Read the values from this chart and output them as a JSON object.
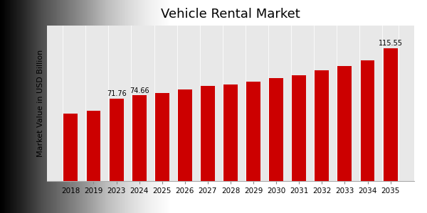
{
  "title": "Vehicle Rental Market",
  "ylabel": "Market Value in USD Billion",
  "categories": [
    "2018",
    "2019",
    "2023",
    "2024",
    "2025",
    "2026",
    "2027",
    "2028",
    "2029",
    "2030",
    "2031",
    "2032",
    "2033",
    "2034",
    "2035"
  ],
  "values": [
    58.5,
    61.0,
    71.76,
    74.66,
    76.5,
    79.5,
    82.5,
    84.0,
    86.5,
    89.5,
    92.0,
    96.0,
    100.0,
    105.0,
    115.55
  ],
  "labeled_indices": [
    2,
    3,
    14
  ],
  "labeled_values": [
    "71.76",
    "74.66",
    "115.55"
  ],
  "bar_color": "#cc0000",
  "bg_color_left": "#d8d8d8",
  "bg_color_right": "#f5f5f5",
  "title_fontsize": 13,
  "ylabel_fontsize": 8,
  "tick_fontsize": 7.5,
  "label_fontsize": 7,
  "ylim": [
    0,
    135
  ],
  "bottom_bar_color": "#cc0000",
  "bottom_bar_height": 0.025
}
